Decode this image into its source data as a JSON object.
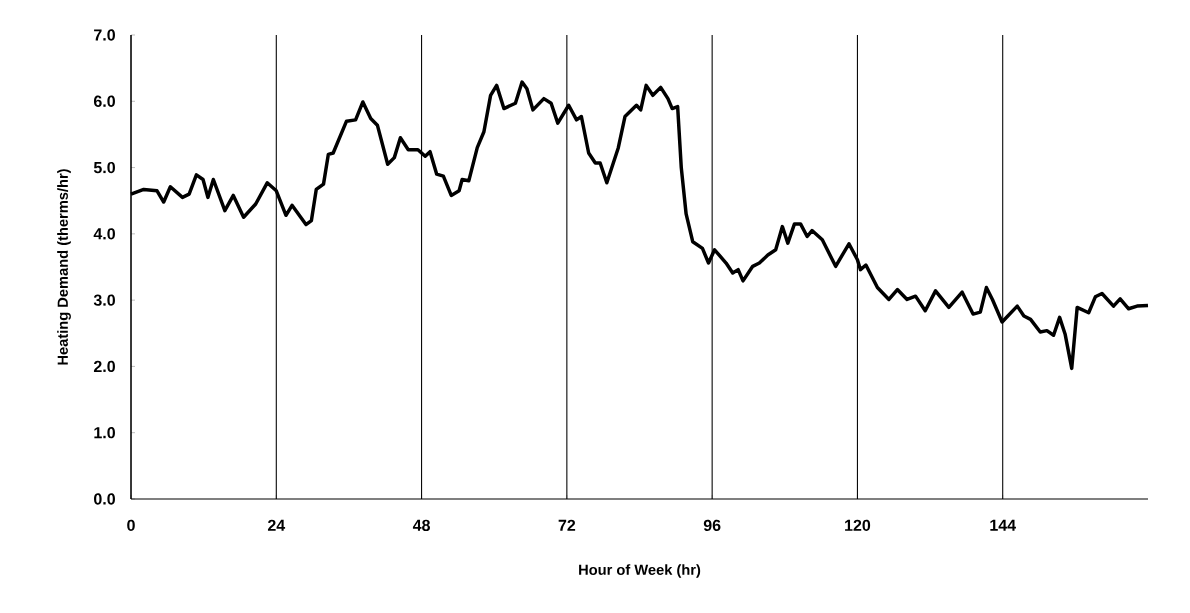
{
  "chart_data": {
    "type": "line",
    "xlabel": "Hour of Week (hr)",
    "ylabel": "Heating Demand (therms/hr)",
    "xlim": [
      0,
      168
    ],
    "ylim": [
      0,
      7
    ],
    "xticks": [
      0,
      24,
      48,
      72,
      96,
      120,
      144
    ],
    "yticks": [
      {
        "value": 0,
        "label": "0.0"
      },
      {
        "value": 1,
        "label": "1.0"
      },
      {
        "value": 2,
        "label": "2.0"
      },
      {
        "value": 3,
        "label": "3.0"
      },
      {
        "value": 4,
        "label": "4.0"
      },
      {
        "value": 5,
        "label": "5.0"
      },
      {
        "value": 6,
        "label": "6.0"
      },
      {
        "value": 7,
        "label": "7.0"
      }
    ],
    "grid": "x",
    "marker": "none",
    "line_style": "solid",
    "series": [
      {
        "color": "#000000",
        "x": [
          0,
          2.1,
          4.3,
          5.4,
          6.5,
          8.5,
          9.6,
          10.8,
          11.9,
          12.7,
          13.6,
          15.5,
          16.9,
          18.6,
          20.6,
          22.5,
          24,
          25.6,
          26.6,
          28.9,
          29.8,
          30.6,
          31.8,
          32.6,
          33.4,
          35.6,
          37.1,
          38.3,
          39.6,
          40.7,
          42.4,
          43.5,
          44.5,
          45.8,
          47.4,
          48.6,
          49.4,
          50.5,
          51.6,
          52.9,
          54.2,
          54.7,
          55.8,
          57.2,
          58.3,
          59.4,
          60.4,
          61.6,
          63.5,
          64.6,
          65.4,
          66.4,
          68.2,
          69.4,
          70.5,
          72.3,
          73.6,
          74.4,
          75.6,
          76.7,
          77.5,
          78.6,
          80.5,
          81.6,
          83.5,
          84.2,
          85.1,
          86.2,
          87.5,
          88.7,
          89.4,
          90.3,
          90.9,
          91.7,
          92.8,
          94.4,
          95.4,
          96.4,
          98.3,
          99.4,
          100.3,
          101.1,
          102.7,
          103.8,
          105.2,
          106.5,
          107.6,
          108.5,
          109.6,
          110.6,
          111.7,
          112.5,
          114.2,
          116.4,
          118.6,
          120,
          120.5,
          121.4,
          123.3,
          125.2,
          126.6,
          128.2,
          129.6,
          131.2,
          132.9,
          135.1,
          137.3,
          139.1,
          140.3,
          141.3,
          142.3,
          143.9,
          146.4,
          147.5,
          148.6,
          150.2,
          151.3,
          152.4,
          153.4,
          154.3,
          155.4,
          156.3,
          158.2,
          159.3,
          160.4,
          162.3,
          163.4,
          164.8,
          166.2,
          168
        ],
        "values": [
          4.6,
          4.67,
          4.65,
          4.48,
          4.71,
          4.55,
          4.6,
          4.89,
          4.82,
          4.55,
          4.82,
          4.35,
          4.58,
          4.25,
          4.45,
          4.77,
          4.65,
          4.28,
          4.43,
          4.14,
          4.2,
          4.67,
          4.75,
          5.2,
          5.22,
          5.7,
          5.72,
          5.99,
          5.74,
          5.64,
          5.05,
          5.15,
          5.45,
          5.27,
          5.27,
          5.17,
          5.24,
          4.9,
          4.87,
          4.58,
          4.65,
          4.82,
          4.8,
          5.3,
          5.54,
          6.09,
          6.24,
          5.89,
          5.97,
          6.29,
          6.19,
          5.87,
          6.04,
          5.97,
          5.67,
          5.94,
          5.72,
          5.77,
          5.22,
          5.07,
          5.07,
          4.77,
          5.3,
          5.77,
          5.94,
          5.87,
          6.24,
          6.09,
          6.21,
          6.04,
          5.89,
          5.92,
          5.0,
          4.3,
          3.88,
          3.78,
          3.56,
          3.76,
          3.56,
          3.41,
          3.46,
          3.29,
          3.51,
          3.56,
          3.68,
          3.76,
          4.11,
          3.86,
          4.15,
          4.15,
          3.96,
          4.05,
          3.91,
          3.51,
          3.85,
          3.61,
          3.46,
          3.53,
          3.19,
          3.01,
          3.16,
          3.01,
          3.06,
          2.84,
          3.14,
          2.89,
          3.12,
          2.79,
          2.82,
          3.19,
          3.01,
          2.67,
          2.91,
          2.76,
          2.71,
          2.52,
          2.54,
          2.47,
          2.74,
          2.49,
          1.97,
          2.89,
          2.81,
          3.05,
          3.1,
          2.91,
          3.02,
          2.87,
          2.91,
          2.92
        ]
      }
    ]
  }
}
